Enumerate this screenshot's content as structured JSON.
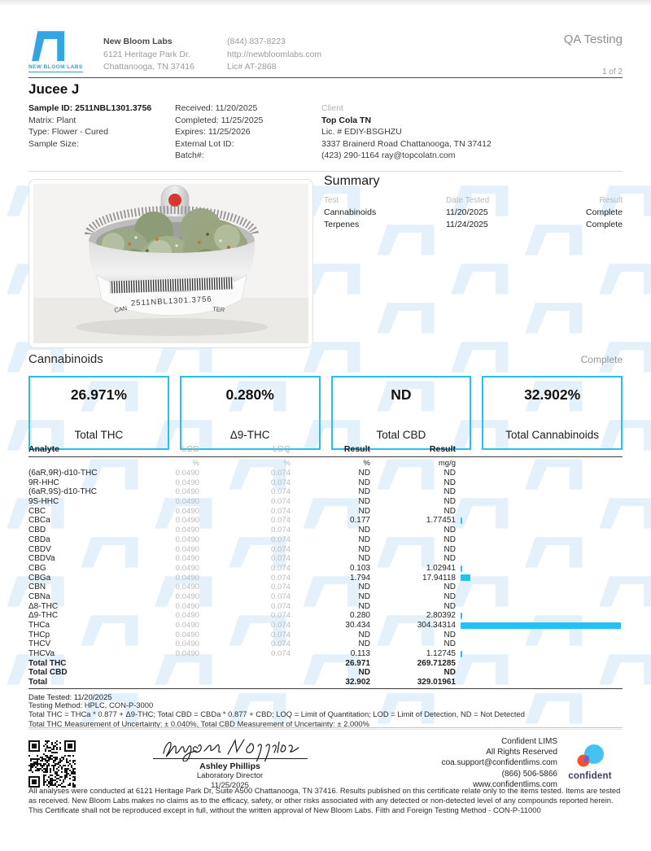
{
  "page": {
    "qa_label": "QA Testing",
    "page_number": "1 of 2"
  },
  "lab": {
    "logo_caption": "NEW BLOOM LABS",
    "name": "New Bloom Labs",
    "address1": "6121 Heritage Park Dr.",
    "address2": "Chattanooga, TN 37416",
    "phone": "(844) 837-8223",
    "website": "http://newbloomlabs.com",
    "license": "Lic# AT-2868"
  },
  "sample": {
    "title": "Jucee J",
    "left": [
      "Sample ID: 2511NBL1301.3756",
      "Matrix: Plant",
      "Type: Flower - Cured",
      "Sample Size:"
    ],
    "mid": [
      "Received: 11/20/2025",
      "Completed: 11/25/2025",
      "Expires: 11/25/2026",
      "External Lot ID:",
      "Batch#:"
    ]
  },
  "client": {
    "label": "Client",
    "name": "Top Cola TN",
    "license": "Lic. # EDIY-BSGHZU",
    "address": "3337 Brainerd Road Chattanooga, TN 37412",
    "contact": "(423) 290-1164 ray@topcolatn.com"
  },
  "photo": {
    "barcode_text": "2511NBL1301.3756",
    "tag_left": "CAN",
    "tag_right": "TER"
  },
  "summary": {
    "title": "Summary",
    "col_test": "Test",
    "col_date": "Date Tested",
    "col_result": "Result",
    "rows": [
      {
        "test": "Cannabinoids",
        "date": "11/20/2025",
        "result": "Complete"
      },
      {
        "test": "Terpenes",
        "date": "11/24/2025",
        "result": "Complete"
      }
    ]
  },
  "cannabinoids": {
    "title": "Cannabinoids",
    "status": "Complete",
    "stats": [
      {
        "value": "26.971%",
        "label": "Total THC"
      },
      {
        "value": "0.280%",
        "label": "Δ9-THC"
      },
      {
        "value": "ND",
        "label": "Total CBD"
      },
      {
        "value": "32.902%",
        "label": "Total Cannabinoids"
      }
    ],
    "table": {
      "col_analyte": "Analyte",
      "col_lod": "LOD",
      "col_loq": "LOQ",
      "col_result1": "Result",
      "col_result2": "Result",
      "unit_lod": "%",
      "unit_loq": "%",
      "unit_result1": "%",
      "unit_result2": "mg/g",
      "rows": [
        {
          "analyte": "(6aR,9R)-d10-THC",
          "lod": "0.0490",
          "loq": "0.074",
          "result_pct": "ND",
          "result_mgg": "ND"
        },
        {
          "analyte": "9R-HHC",
          "lod": "0.0490",
          "loq": "0.074",
          "result_pct": "ND",
          "result_mgg": "ND"
        },
        {
          "analyte": "(6aR,9S)-d10-THC",
          "lod": "0.0490",
          "loq": "0.074",
          "result_pct": "ND",
          "result_mgg": "ND"
        },
        {
          "analyte": "9S-HHC",
          "lod": "0.0490",
          "loq": "0.074",
          "result_pct": "ND",
          "result_mgg": "ND"
        },
        {
          "analyte": "CBC",
          "lod": "0.0490",
          "loq": "0.074",
          "result_pct": "ND",
          "result_mgg": "ND"
        },
        {
          "analyte": "CBCa",
          "lod": "0.0490",
          "loq": "0.074",
          "result_pct": "0.177",
          "result_mgg": "1.77451"
        },
        {
          "analyte": "CBD",
          "lod": "0.0490",
          "loq": "0.074",
          "result_pct": "ND",
          "result_mgg": "ND"
        },
        {
          "analyte": "CBDa",
          "lod": "0.0490",
          "loq": "0.074",
          "result_pct": "ND",
          "result_mgg": "ND"
        },
        {
          "analyte": "CBDV",
          "lod": "0.0490",
          "loq": "0.074",
          "result_pct": "ND",
          "result_mgg": "ND"
        },
        {
          "analyte": "CBDVa",
          "lod": "0.0490",
          "loq": "0.074",
          "result_pct": "ND",
          "result_mgg": "ND"
        },
        {
          "analyte": "CBG",
          "lod": "0.0490",
          "loq": "0.074",
          "result_pct": "0.103",
          "result_mgg": "1.02941"
        },
        {
          "analyte": "CBGa",
          "lod": "0.0490",
          "loq": "0.074",
          "result_pct": "1.794",
          "result_mgg": "17.94118"
        },
        {
          "analyte": "CBN",
          "lod": "0.0490",
          "loq": "0.074",
          "result_pct": "ND",
          "result_mgg": "ND"
        },
        {
          "analyte": "CBNa",
          "lod": "0.0490",
          "loq": "0.074",
          "result_pct": "ND",
          "result_mgg": "ND"
        },
        {
          "analyte": "Δ8-THC",
          "lod": "0.0490",
          "loq": "0.074",
          "result_pct": "ND",
          "result_mgg": "ND"
        },
        {
          "analyte": "Δ9-THC",
          "lod": "0.0490",
          "loq": "0.074",
          "result_pct": "0.280",
          "result_mgg": "2.80392"
        },
        {
          "analyte": "THCa",
          "lod": "0.0490",
          "loq": "0.074",
          "result_pct": "30.434",
          "result_mgg": "304.34314"
        },
        {
          "analyte": "THCp",
          "lod": "0.0490",
          "loq": "0.074",
          "result_pct": "ND",
          "result_mgg": "ND"
        },
        {
          "analyte": "THCV",
          "lod": "0.0490",
          "loq": "0.074",
          "result_pct": "ND",
          "result_mgg": "ND"
        },
        {
          "analyte": "THCVa",
          "lod": "0.0490",
          "loq": "0.074",
          "result_pct": "0.113",
          "result_mgg": "1.12745"
        },
        {
          "analyte": "Total THC",
          "lod": "",
          "loq": "",
          "result_pct": "26.971",
          "result_mgg": "269.71285",
          "total": true
        },
        {
          "analyte": "Total CBD",
          "lod": "",
          "loq": "",
          "result_pct": "ND",
          "result_mgg": "ND",
          "total": true
        },
        {
          "analyte": "Total",
          "lod": "",
          "loq": "",
          "result_pct": "32.902",
          "result_mgg": "329.01961",
          "total": true
        }
      ]
    },
    "date_tested": "Date Tested: 11/20/2025"
  },
  "methods": {
    "line1": "Testing Method: HPLC, CON-P-3000",
    "line2": "Total THC = THCa * 0.877 + Δ9-THC; Total CBD = CBDa * 0.877 + CBD; LOQ = Limit of Quantitation; LOD = Limit of Detection, ND = Not Detected",
    "line3": "Total THC Measurement of Uncertainty: ± 0.040%, Total CBD Measurement of Uncertainty: ± 2.000%"
  },
  "signature": {
    "name": "Ashley Phillips",
    "title": "Laboratory Director",
    "date": "11/25/2025"
  },
  "lims": {
    "name": "Confident LIMS",
    "rights": "All Rights Reserved",
    "email": "coa.support@confidentlims.com",
    "phone": "(866) 506-5866",
    "website": "www.confidentlims.com",
    "brand": "confident"
  },
  "disclaimer": "All analyses were conducted at 6121 Heritage Park Dr, Suite A500 Chattanooga, TN 37416. Results published on this certificate relate only to the items tested. Items are tested as received. New Bloom Labs makes no claims as to the efficacy, safety, or other risks associated with any detected or non-detected level of any compounds reported herein. This Certificate shall not be reproduced except in full, without the written approval of New Bloom Labs. Filth and Foreign Testing Method - CON-P-11000"
}
